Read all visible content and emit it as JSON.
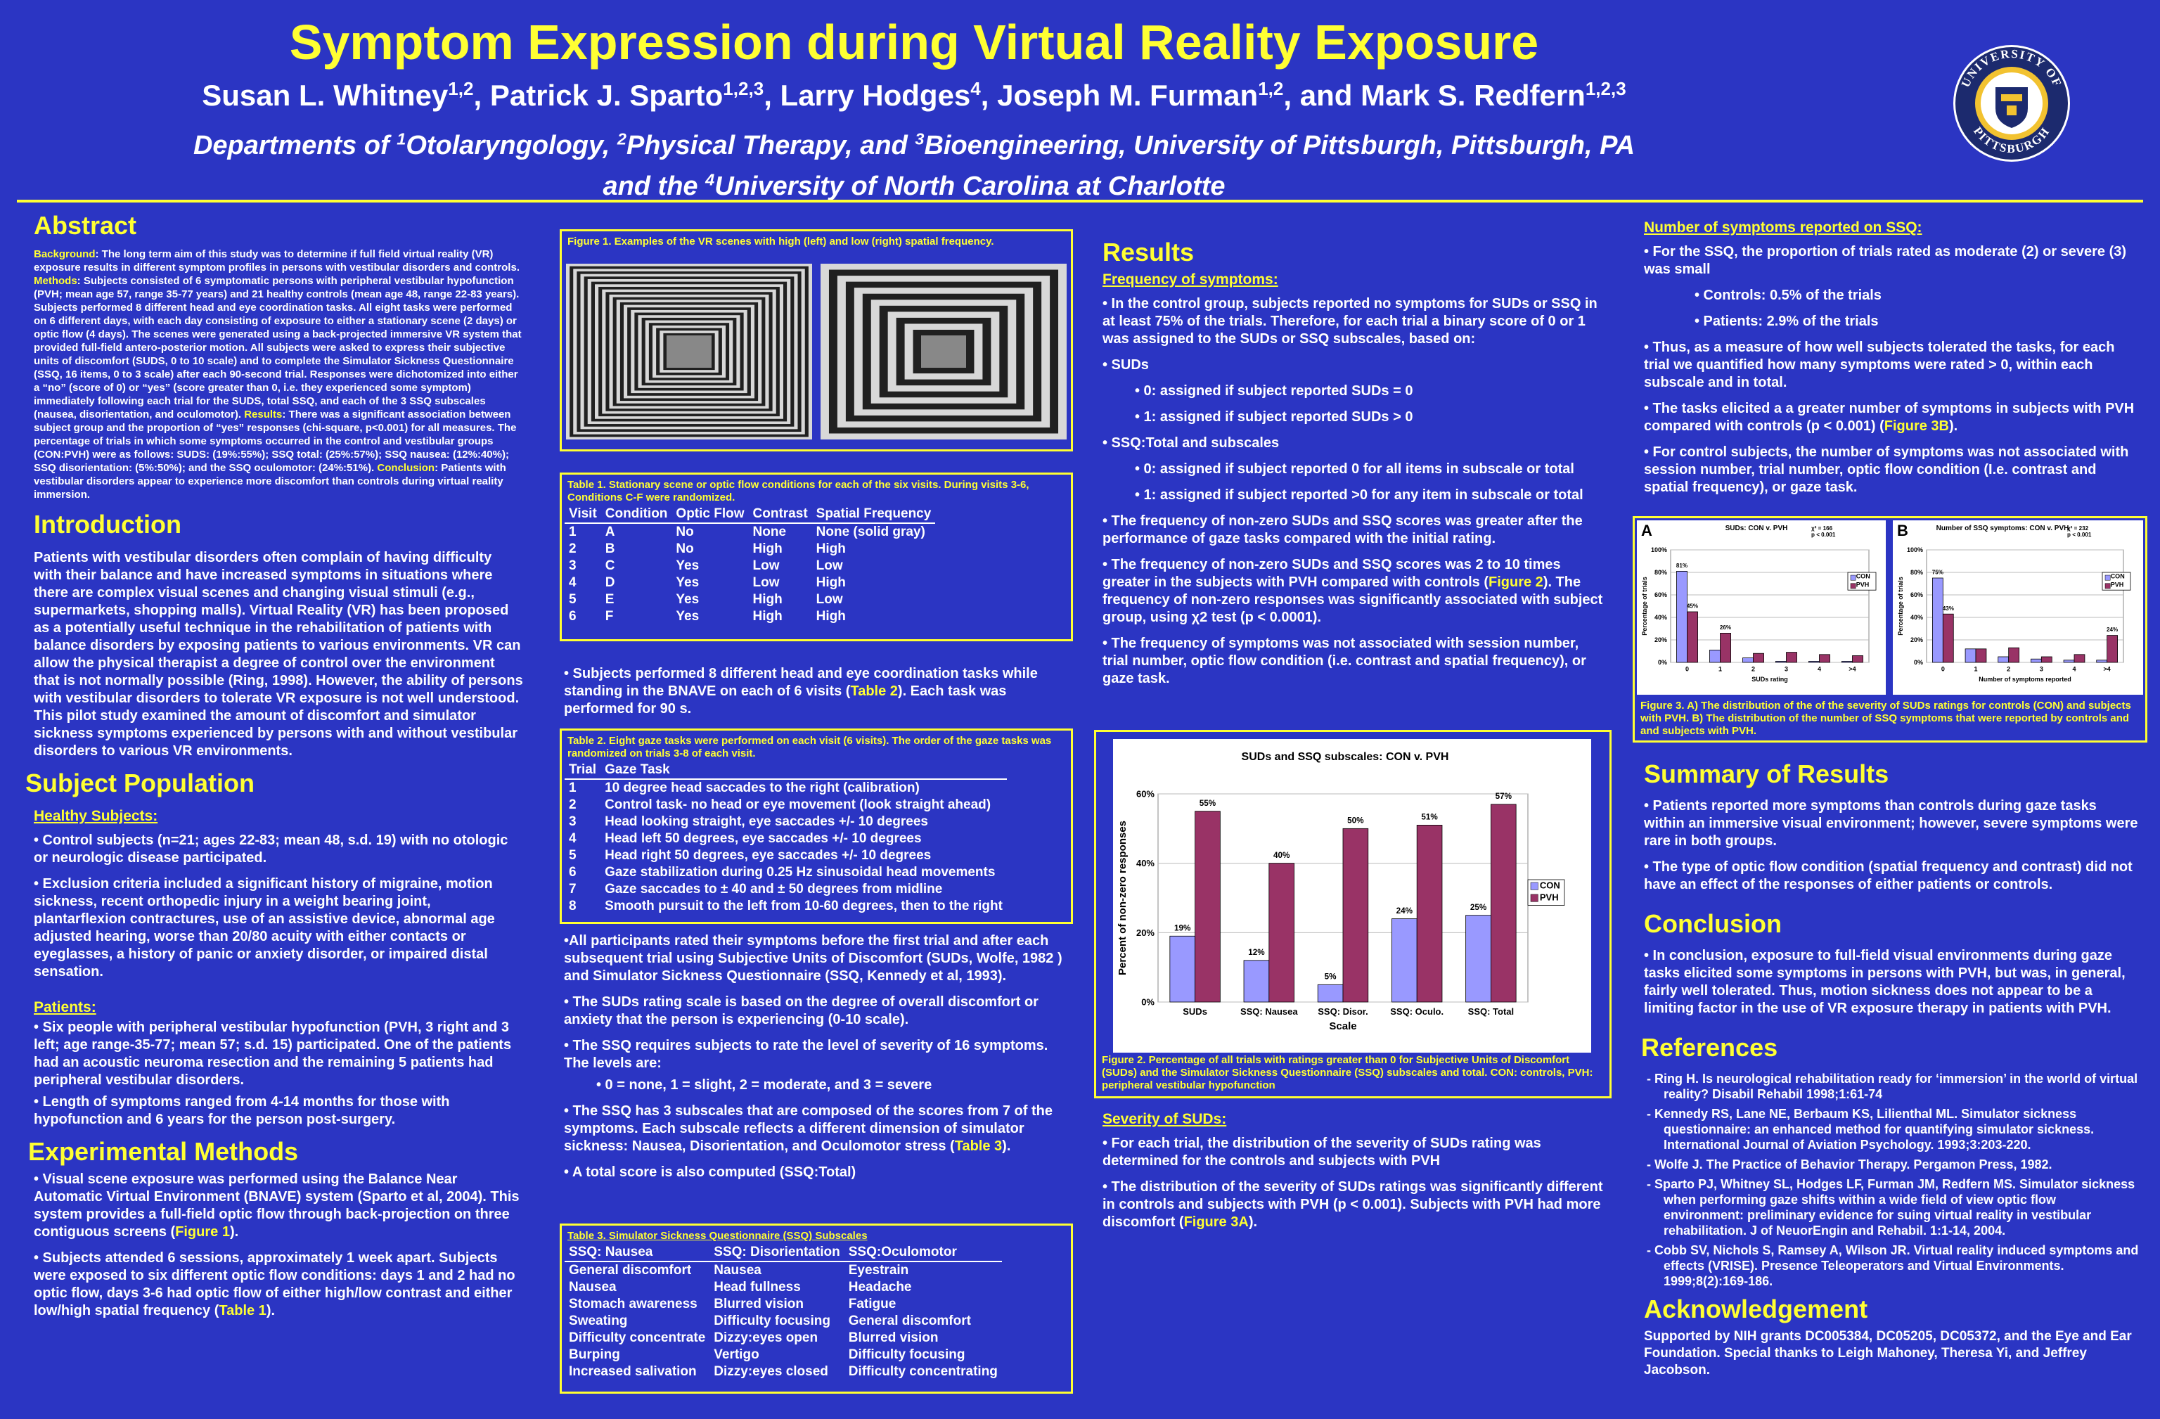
{
  "header": {
    "title": "Symptom Expression during Virtual Reality Exposure",
    "authors": [
      {
        "name": "Susan L. Whitney",
        "aff": "1,2"
      },
      {
        "name": "Patrick J. Sparto",
        "aff": "1,2,3"
      },
      {
        "name": "Larry Hodges",
        "aff": "4"
      },
      {
        "name": "Joseph M. Furman",
        "aff": "1,2"
      },
      {
        "name": "Mark S. Redfern",
        "aff": "1,2,3"
      }
    ],
    "dept_line1": "Departments of 1Otolaryngology, 2Physical Therapy, and 3Bioengineering, University of Pittsburgh, Pittsburgh, PA",
    "dept_line2": "and the 4University of North Carolina at Charlotte",
    "seal_text_top": "UNIVERSITY OF",
    "seal_text_bottom": "PITTSBURGH"
  },
  "abstract": {
    "heading": "Abstract",
    "lbl_background": "Background",
    "background": ": The long term aim of this study was to determine if full field virtual reality (VR) exposure results in different symptom profiles in persons with vestibular disorders and controls. ",
    "lbl_methods": "Methods",
    "methods": ": Subjects consisted of 6 symptomatic persons with peripheral vestibular hypofunction (PVH; mean age 57, range 35-77 years) and 21 healthy controls (mean age 48, range 22-83 years). Subjects performed 8 different head and eye coordination tasks. All eight tasks were performed on 6 different days, with each day consisting of exposure to either a stationary scene (2 days) or optic flow (4 days).  The scenes were generated using a back-projected immersive VR system that provided full-field antero-posterior motion.  All subjects were asked to express their subjective units of discomfort (SUDS, 0 to 10 scale) and to complete the Simulator Sickness Questionnaire (SSQ, 16 items, 0 to 3 scale) after each 90-second trial. Responses were dichotomized into either a “no” (score of 0) or “yes” (score greater than 0, i.e. they experienced some symptom) immediately following each trial for the SUDS, total SSQ, and each of the 3 SSQ subscales (nausea, disorientation, and oculomotor).    ",
    "lbl_results": "Results",
    "results": ": There was a significant association between subject group and the proportion of “yes” responses (chi-square, p<0.001) for all measures.  The percentage of trials in which some symptoms occurred in the control and vestibular groups (CON:PVH) were as follows:  SUDS: (19%:55%); SSQ total: (25%:57%); SSQ nausea: (12%:40%); SSQ disorientation: (5%:50%); and the SSQ oculomotor: (24%:51%).  ",
    "lbl_conclusion": "Conclusion",
    "conclusion": ": Patients with vestibular disorders appear to experience more discomfort than controls during virtual reality immersion."
  },
  "introduction": {
    "heading": "Introduction",
    "text": "Patients with vestibular disorders often complain of having difficulty with their balance and have increased symptoms in situations where there are complex visual scenes and changing visual stimuli (e.g., supermarkets, shopping malls). Virtual Reality (VR) has been proposed as a potentially useful technique in the rehabilitation of patients with balance disorders by exposing patients to various environments. VR can allow the physical therapist a degree of control over the environment that is not normally possible (Ring, 1998). However, the ability of persons with vestibular disorders to tolerate VR exposure is not well understood.  This pilot study examined the amount of discomfort and simulator sickness symptoms experienced by persons with and without vestibular disorders to various VR environments."
  },
  "subjects": {
    "heading": "Subject Population",
    "healthy_heading": "Healthy Subjects:",
    "healthy_1": "• Control subjects (n=21; ages 22-83; mean 48, s.d. 19) with no otologic or neurologic disease participated.",
    "healthy_2": "•  Exclusion criteria included a significant history of migraine, motion sickness, recent orthopedic injury in a weight bearing joint, plantarflexion contractures, use of an assistive device, abnormal age adjusted hearing, worse than 20/80 acuity with either contacts or eyeglasses, a history of panic or anxiety disorder, or impaired distal sensation.",
    "patients_heading": "Patients:",
    "patients_1": "• Six people with peripheral vestibular hypofunction (PVH, 3 right and 3 left; age range-35-77;  mean 57; s.d. 15) participated.  One of the patients had an acoustic neuroma resection and the remaining 5 patients had peripheral vestibular disorders.",
    "patients_2": "• Length of symptoms ranged from 4-14 months for those with hypofunction and 6 years for the person post-surgery."
  },
  "methods": {
    "heading": "Experimental Methods",
    "m1_a": "• Visual scene exposure was performed using the Balance Near Automatic Virtual Environment (BNAVE) system (Sparto et al, 2004). This system provides a full-field optic flow through back-projection on three contiguous screens (",
    "m1_ref": "Figure 1",
    "m1_b": ").",
    "m2_a": "• Subjects attended 6 sessions, approximately 1 week apart. Subjects were exposed to six different optic flow conditions:  days 1 and 2 had no optic flow, days 3-6 had optic flow of either high/low contrast and either low/high spatial frequency (",
    "m2_ref": "Table 1",
    "m2_b": ")."
  },
  "figure1": {
    "caption": "Figure 1.  Examples of the VR scenes with high (left) and low (right) spatial frequency."
  },
  "table1": {
    "caption": "Table 1.  Stationary scene or optic flow conditions for each of the six visits.  During visits 3-6, Conditions C-F were randomized.",
    "headers": [
      "Visit",
      "Condition",
      "Optic Flow",
      "Contrast",
      "Spatial Frequency"
    ],
    "rows": [
      [
        "1",
        "A",
        "No",
        "None",
        "None (solid gray)"
      ],
      [
        "2",
        "B",
        "No",
        "High",
        "High"
      ],
      [
        "3",
        "C",
        "Yes",
        "Low",
        "Low"
      ],
      [
        "4",
        "D",
        "Yes",
        "Low",
        "High"
      ],
      [
        "5",
        "E",
        "Yes",
        "High",
        "Low"
      ],
      [
        "6",
        "F",
        "Yes",
        "High",
        "High"
      ]
    ]
  },
  "mid": {
    "p1_a": "• Subjects performed 8 different head and eye coordination tasks while standing in the BNAVE on each of 6 visits (",
    "p1_ref": "Table 2",
    "p1_b": "). Each task was performed for 90 s.",
    "p2": "•All participants rated their symptoms before the first trial and after each subsequent trial using Subjective Units of Discomfort (SUDs, Wolfe, 1982 ) and Simulator Sickness Questionnaire (SSQ, Kennedy et al, 1993).",
    "p3": "• The SUDs rating scale is based on the degree of overall discomfort or anxiety that the person is experiencing (0-10 scale).",
    "p4": "• The SSQ requires subjects to rate the level of severity of 16 symptoms. The levels are:",
    "p5": "• 0 = none, 1 = slight, 2 = moderate, and 3 = severe",
    "p6_a": "• The SSQ has 3 subscales that are composed of the scores from 7 of the symptoms. Each subscale reflects a different dimension of simulator sickness: Nausea, Disorientation, and Oculomotor stress (",
    "p6_ref": "Table 3",
    "p6_b": ").",
    "p7": "• A total score is also computed (SSQ:Total)"
  },
  "table2": {
    "caption": "Table 2.  Eight gaze tasks were performed on each visit  (6 visits).  The order of the gaze tasks was randomized on trials 3-8 of each visit.",
    "headers": [
      "Trial",
      "Gaze Task"
    ],
    "rows": [
      [
        "1",
        "10 degree head saccades to the right (calibration)"
      ],
      [
        "2",
        "Control task- no head or eye movement (look straight ahead)"
      ],
      [
        "3",
        "Head looking straight, eye saccades +/- 10 degrees"
      ],
      [
        "4",
        "Head left 50 degrees, eye saccades +/- 10 degrees"
      ],
      [
        "5",
        "Head right 50 degrees, eye saccades +/- 10 degrees"
      ],
      [
        "6",
        "Gaze stabilization during 0.25 Hz sinusoidal head movements"
      ],
      [
        "7",
        "Gaze saccades to ± 40 and ± 50 degrees from midline"
      ],
      [
        "8",
        "Smooth pursuit to the left from 10-60 degrees, then to the right"
      ]
    ]
  },
  "table3": {
    "caption": "Table 3.  Simulator Sickness Questionnaire (SSQ) Subscales",
    "headers": [
      "SSQ: Nausea",
      "SSQ: Disorientation",
      "SSQ:Oculomotor"
    ],
    "rows": [
      [
        "General discomfort",
        "Nausea",
        "Eyestrain"
      ],
      [
        "Nausea",
        "Head fullness",
        "Headache"
      ],
      [
        "Stomach awareness",
        "Blurred vision",
        "Fatigue"
      ],
      [
        "Sweating",
        "Difficulty focusing",
        "General discomfort"
      ],
      [
        "Difficulty concentrate",
        "Dizzy:eyes open",
        "Blurred vision"
      ],
      [
        "Burping",
        "Vertigo",
        "Difficulty focusing"
      ],
      [
        "Increased salivation",
        "Dizzy:eyes closed",
        "Difficulty concentrating"
      ]
    ]
  },
  "results": {
    "heading": "Results",
    "freq_heading": "Frequency of symptoms:",
    "r1": "• In the control group, subjects reported no symptoms for SUDs or SSQ in at least 75% of the trials. Therefore, for each trial a binary score of 0 or 1 was assigned to the SUDs or SSQ subscales, based on:",
    "r2": "• SUDs",
    "r3": "• 0: assigned if subject reported SUDs = 0",
    "r4": "• 1: assigned if subject reported SUDs > 0",
    "r5": "• SSQ:Total and subscales",
    "r6": "• 0: assigned if subject reported 0 for all items in subscale or total",
    "r7": "• 1: assigned if subject reported >0 for any item in subscale or total",
    "r8": "• The frequency of non-zero SUDs and SSQ scores was greater after the performance of gaze tasks compared with the initial rating.",
    "r9_a": "• The frequency of non-zero SUDs and SSQ scores was 2 to 10 times greater in the subjects with PVH compared with controls (",
    "r9_ref": "Figure 2",
    "r9_b": "). The frequency of non-zero responses was significantly associated with subject group, using χ2 test (p < 0.0001).",
    "r10": "• The frequency of symptoms was not associated with session number, trial number, optic flow condition (i.e. contrast and spatial frequency), or gaze task.",
    "sev_heading": "Severity of SUDs:",
    "s1": "• For each trial, the distribution of the severity of SUDs rating was determined for the controls and subjects with PVH",
    "s2_a": "• The distribution of the severity of SUDs ratings was significantly different in controls and subjects with PVH (p < 0.001). Subjects with PVH had more discomfort (",
    "s2_ref": "Figure 3A",
    "s2_b": ")."
  },
  "figure2": {
    "caption": "Figure 2. Percentage of all trials with ratings greater than 0 for Subjective Units of Discomfort (SUDs) and the Simulator Sickness Questionnaire (SSQ) subscales and total. CON: controls, PVH: peripheral vestibular hypofunction"
  },
  "chart_data": [
    {
      "type": "bar",
      "title": "SUDs and SSQ subscales: CON v. PVH",
      "xlabel": "Scale",
      "ylabel": "Percent of non-zero responses",
      "categories": [
        "SUDs",
        "SSQ: Nausea",
        "SSQ: Disor.",
        "SSQ: Oculo.",
        "SSQ: Total"
      ],
      "series": [
        {
          "name": "CON",
          "values": [
            19,
            12,
            5,
            24,
            25
          ],
          "labels": [
            "19%",
            "12%",
            "5%",
            "24%",
            "25%"
          ],
          "color": "#9999ff"
        },
        {
          "name": "PVH",
          "values": [
            55,
            40,
            50,
            51,
            57
          ],
          "labels": [
            "55%",
            "40%",
            "50%",
            "51%",
            "57%"
          ],
          "color": "#993366"
        }
      ],
      "ylim": [
        0,
        60
      ],
      "yticks": [
        "0%",
        "20%",
        "40%",
        "60%"
      ],
      "grid": true,
      "legend": "right"
    },
    {
      "type": "bar",
      "panel_label": "A",
      "title": "SUDs:  CON v. PVH",
      "stat": "χ² = 166",
      "stat2": "p < 0.001",
      "xlabel": "SUDs rating",
      "ylabel": "Percentage of trials",
      "categories": [
        "0",
        "1",
        "2",
        "3",
        "4",
        ">4"
      ],
      "series": [
        {
          "name": "CON",
          "values": [
            81,
            11,
            4,
            1,
            1,
            1
          ],
          "labels": [
            "81%",
            "",
            "",
            "",
            "",
            ""
          ],
          "color": "#9999ff"
        },
        {
          "name": "PVH",
          "values": [
            45,
            26,
            8,
            9,
            7,
            6
          ],
          "labels": [
            "45%",
            "26%",
            "",
            "",
            "",
            ""
          ],
          "color": "#993366"
        }
      ],
      "ylim": [
        0,
        100
      ],
      "yticks": [
        "0%",
        "20%",
        "40%",
        "60%",
        "80%",
        "100%"
      ],
      "legend": "right"
    },
    {
      "type": "bar",
      "panel_label": "B",
      "title": "Number of SSQ symptoms:  CON v. PVH",
      "stat": "χ² = 232",
      "stat2": "p < 0.001",
      "xlabel": "Number of symptoms reported",
      "ylabel": "Percentage of trials",
      "categories": [
        "0",
        "1",
        "2",
        "3",
        "4",
        ">4"
      ],
      "series": [
        {
          "name": "CON",
          "values": [
            75,
            12,
            5,
            3,
            2,
            2
          ],
          "labels": [
            "75%",
            "",
            "",
            "",
            "",
            ""
          ],
          "color": "#9999ff"
        },
        {
          "name": "PVH",
          "values": [
            43,
            12,
            13,
            5,
            7,
            24
          ],
          "labels": [
            "43%",
            "",
            "",
            "",
            "",
            "24%"
          ],
          "color": "#993366"
        }
      ],
      "ylim": [
        0,
        100
      ],
      "yticks": [
        "0%",
        "20%",
        "40%",
        "60%",
        "80%",
        "100%"
      ],
      "legend": "right"
    }
  ],
  "right": {
    "num_heading": "Number of symptoms reported on SSQ:",
    "n1": "• For the SSQ, the proportion of trials rated as moderate (2) or severe (3) was small",
    "n2": "• Controls: 0.5% of the trials",
    "n3": "• Patients: 2.9% of the trials",
    "n4": "• Thus, as a measure of how well subjects tolerated the tasks, for each trial we quantified how many symptoms were rated > 0, within each subscale and in total.",
    "n5_a": "• The tasks elicited a a greater number of symptoms in subjects with PVH compared with controls (p < 0.001) (",
    "n5_ref": "Figure 3B",
    "n5_b": ").",
    "n6": "• For control subjects, the number of symptoms was not associated with session number, trial number, optic flow condition (I.e. contrast and spatial frequency), or gaze task.",
    "fig3_caption": "Figure 3.  A)  The distribution of the of the severity of SUDs ratings for controls (CON) and subjects with PVH.  B)  The distribution of the number of SSQ symptoms that were reported by controls and and subjects with PVH.",
    "summary_heading": "Summary of Results",
    "sum1": "• Patients reported more symptoms than controls during gaze tasks within an immersive visual environment; however, severe symptoms were rare in both groups.",
    "sum2": "• The type of optic flow condition (spatial frequency and contrast) did not have an effect of the responses of either patients or controls.",
    "conclusion_heading": "Conclusion",
    "conc1": "• In conclusion, exposure to full-field visual environments during gaze tasks elicited some symptoms in persons with PVH, but was, in general, fairly well tolerated.  Thus, motion sickness does not appear to be a limiting factor in the use of VR exposure therapy in patients with PVH.",
    "references_heading": "References",
    "refs": [
      "-     Ring H.  Is neurological rehabilitation ready for ‘immersion’ in the world of virtual reality?  Disabil Rehabil 1998;1:61-74",
      "-     Kennedy RS, Lane NE, Berbaum KS, Lilienthal ML.  Simulator sickness questionnaire:  an enhanced method for quantifying simulator sickness.  International Journal of Aviation Psychology.  1993;3:203-220.",
      "-     Wolfe J.  The Practice of Behavior Therapy.  Pergamon Press, 1982.",
      "-     Sparto PJ, Whitney SL, Hodges LF, Furman JM, Redfern MS.  Simulator sickness when performing gaze shifts within a wide field of view optic flow environment: preliminary evidence for suing virtual reality in vestibular rehabilitation.  J of NeuorEngin and Rehabil. 1:1-14, 2004.",
      "-     Cobb SV, Nichols S, Ramsey A, Wilson JR. Virtual reality induced symptoms and effects (VRISE).  Presence Teleoperators and Virtual Environments. 1999;8(2):169-186."
    ],
    "ack_heading": "Acknowledgement",
    "ack": "Supported by NIH grants DC005384, DC05205, DC05372, and the Eye and Ear Foundation.  Special thanks to Leigh Mahoney, Theresa Yi, and Jeffrey Jacobson."
  }
}
